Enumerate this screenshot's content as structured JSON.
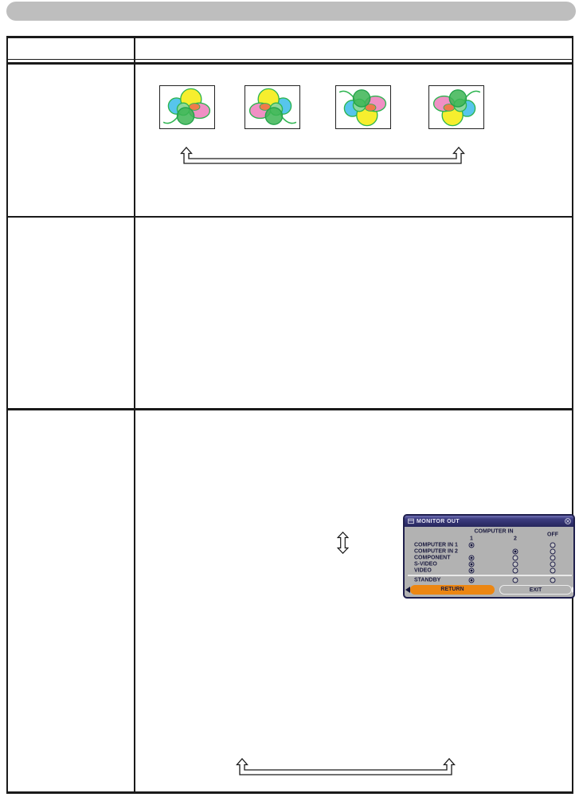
{
  "page": {
    "type": "projector-manual-page",
    "header_bar_text": "",
    "table": {
      "columns": 2,
      "rows": 3,
      "row1_content": "mirror-preview-images",
      "row3_content": "monitor-out-menu"
    }
  },
  "mirror_previews": [
    {
      "name": "normal"
    },
    {
      "name": "h-invert"
    },
    {
      "name": "v-invert"
    },
    {
      "name": "hv-invert"
    }
  ],
  "menu": {
    "title": "MONITOR OUT",
    "title_icon": "monitor-out-menu-icon",
    "close_icon": "close-icon",
    "column_group_header": "COMPUTER IN",
    "col1": "1",
    "col2": "2",
    "col3": "OFF",
    "rows": [
      {
        "label": "COMPUTER IN 1",
        "radios": [
          "selected",
          "none",
          "unselected"
        ]
      },
      {
        "label": "COMPUTER IN 2",
        "radios": [
          "none",
          "selected",
          "unselected"
        ]
      },
      {
        "label": "COMPONENT",
        "radios": [
          "selected",
          "unselected",
          "unselected"
        ]
      },
      {
        "label": "S-VIDEO",
        "radios": [
          "selected",
          "unselected",
          "unselected"
        ]
      },
      {
        "label": "VIDEO",
        "radios": [
          "selected",
          "unselected",
          "unselected"
        ]
      },
      {
        "label": "STANDBY",
        "radios": [
          "selected",
          "unselected",
          "unselected"
        ]
      }
    ],
    "buttons": {
      "return_label": "RETURN",
      "exit_label": "EXIT"
    }
  },
  "colors": {
    "header_bar_gray": "#bebebe",
    "table_border": "#1a1a1a",
    "menu_title_navy": "#31316b",
    "menu_body_gray": "#b2b2b2",
    "menu_text_navy": "#1b1b3f",
    "return_orange": "#ec8612",
    "flower_yellow": "#f6ee2e",
    "flower_blue": "#57c5ec",
    "flower_pink": "#f090c4",
    "flower_green": "#3cb554",
    "flower_orange": "#ef7b4b"
  }
}
